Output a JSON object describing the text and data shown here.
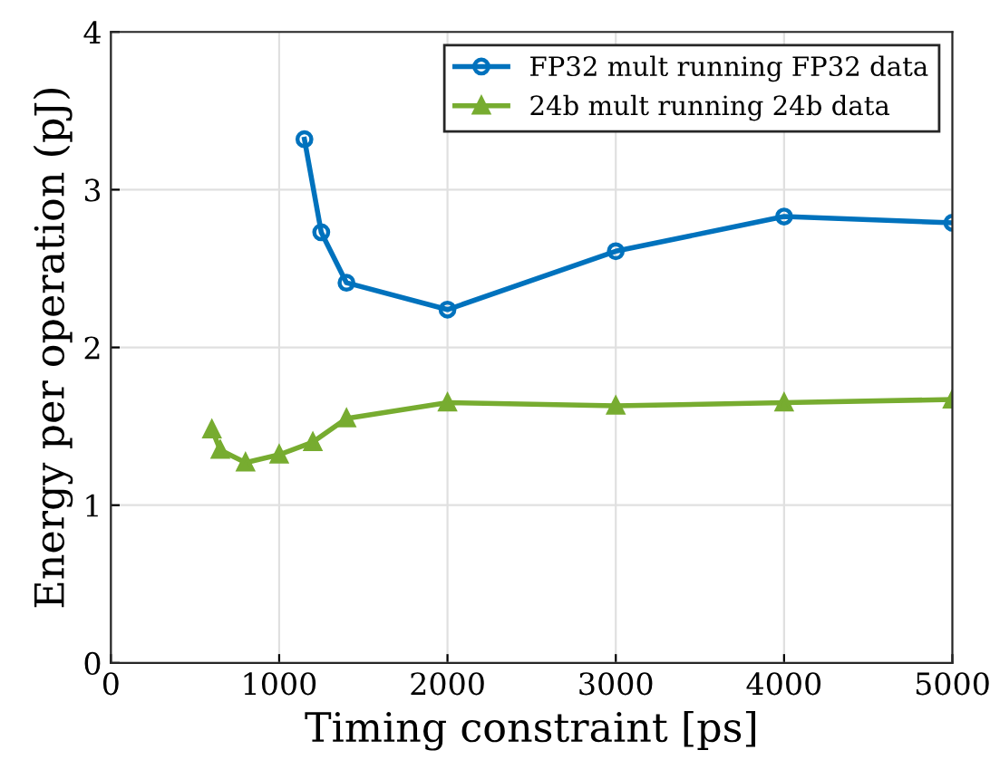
{
  "chart_data": {
    "type": "line",
    "xlabel": "Timing constraint [ps]",
    "ylabel": "Energy per operation (pJ)",
    "series": [
      {
        "name": "FP32 mult running FP32 data",
        "color": "#0072bd",
        "marker": "circle",
        "x": [
          1150,
          1250,
          1400,
          2000,
          3000,
          4000,
          5000
        ],
        "values": [
          3.32,
          2.73,
          2.41,
          2.24,
          2.61,
          2.83,
          2.79
        ]
      },
      {
        "name": "24b mult running 24b data",
        "color": "#77ac30",
        "marker": "triangle",
        "x": [
          600,
          650,
          800,
          1000,
          1200,
          1400,
          2000,
          3000,
          4000,
          5000
        ],
        "values": [
          1.48,
          1.35,
          1.27,
          1.32,
          1.4,
          1.55,
          1.65,
          1.63,
          1.65,
          1.67
        ]
      }
    ],
    "xlim": [
      0,
      5000
    ],
    "xticks": [
      0,
      1000,
      2000,
      3000,
      4000,
      5000
    ],
    "ylim": [
      0,
      4
    ],
    "yticks": [
      0,
      1,
      2,
      3,
      4
    ],
    "grid": true,
    "legend": "top right",
    "line_style": "solid"
  }
}
